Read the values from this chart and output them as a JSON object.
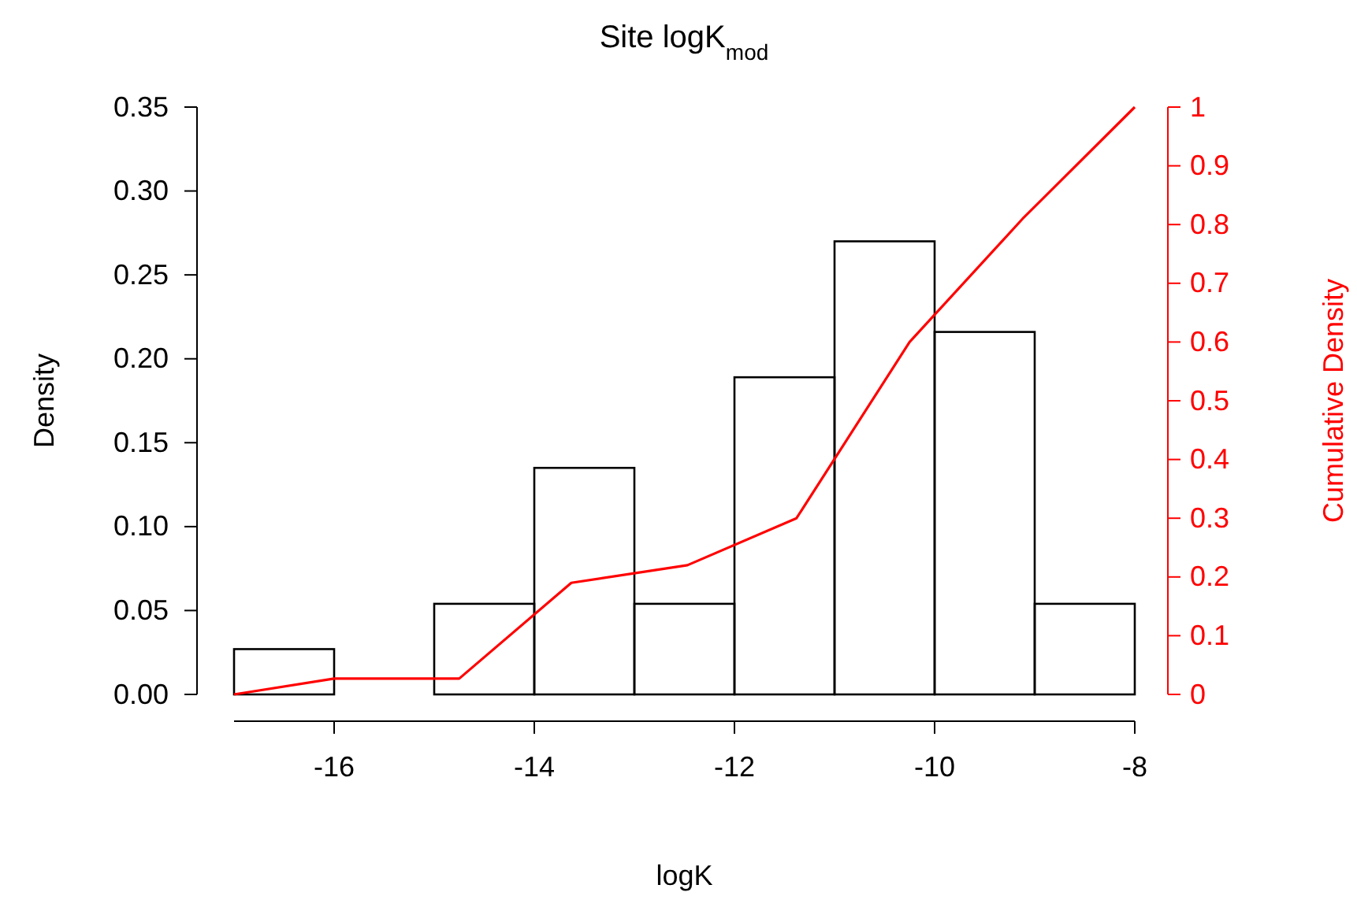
{
  "chart_data": {
    "type": "histogram",
    "title": "Site logK$_{mod}$",
    "xlabel": "logK",
    "ylabel": "Density",
    "y2label": "Cumulative Density",
    "xlim": [
      -17,
      -8
    ],
    "xticks": [
      -16,
      -14,
      -12,
      -10,
      -8
    ],
    "ylim": [
      0,
      0.35
    ],
    "yticks": [
      {
        "value": 0,
        "label": "0.00"
      },
      {
        "value": 0.05,
        "label": "0.05"
      },
      {
        "value": 0.1,
        "label": "0.10"
      },
      {
        "value": 0.15,
        "label": "0.15"
      },
      {
        "value": 0.2,
        "label": "0.20"
      },
      {
        "value": 0.25,
        "label": "0.25"
      },
      {
        "value": 0.3,
        "label": "0.30"
      },
      {
        "value": 0.35,
        "label": "0.35"
      }
    ],
    "y2lim": [
      0,
      1
    ],
    "y2ticks": [
      0,
      0.1,
      0.2,
      0.3,
      0.4,
      0.5,
      0.6,
      0.7,
      0.8,
      0.9,
      1
    ],
    "grid": false,
    "series": [
      {
        "color": "#000000",
        "bins": [
          -17,
          -16,
          -15,
          -14,
          -13,
          -12,
          -11,
          -10,
          -9,
          -8
        ],
        "values": [
          0.027,
          0,
          0.054,
          0.135,
          0.054,
          0.189,
          0.27,
          0.216,
          0.054
        ]
      },
      {
        "type": "line",
        "axis": "y2",
        "color": "#ff0000",
        "x": [
          -17,
          -16,
          -14.75,
          -13.63,
          -12.47,
          -11.38,
          -10.25,
          -9.12,
          -8
        ],
        "values": [
          0,
          0.027,
          0.027,
          0.19,
          0.22,
          0.3,
          0.6,
          0.81,
          1
        ]
      }
    ]
  }
}
